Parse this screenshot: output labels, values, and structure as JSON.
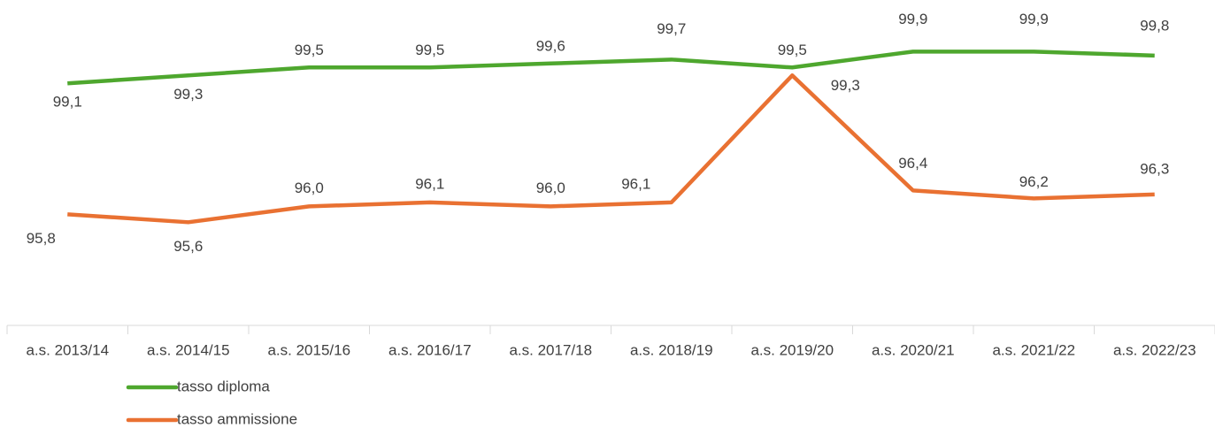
{
  "chart_data": {
    "type": "line",
    "categories": [
      "a.s. 2013/14",
      "a.s. 2014/15",
      "a.s. 2015/16",
      "a.s. 2016/17",
      "a.s. 2017/18",
      "a.s. 2018/19",
      "a.s. 2019/20",
      "a.s. 2020/21",
      "a.s. 2021/22",
      "a.s. 2022/23"
    ],
    "series": [
      {
        "name": "tasso diploma",
        "color": "#4ea72e",
        "values": [
          99.1,
          99.3,
          99.5,
          99.5,
          99.6,
          99.7,
          99.5,
          99.9,
          99.9,
          99.8
        ],
        "value_labels": [
          "99,1",
          "99,3",
          "99,5",
          "99,5",
          "99,6",
          "99,7",
          "99,5",
          "99,9",
          "99,9",
          "99,8"
        ]
      },
      {
        "name": "tasso ammissione",
        "color": "#e97132",
        "values": [
          95.8,
          95.6,
          96.0,
          96.1,
          96.0,
          96.1,
          99.3,
          96.4,
          96.2,
          96.3
        ],
        "value_labels": [
          "95,8",
          "95,6",
          "96,0",
          "96,1",
          "96,0",
          "96,1",
          "99,3",
          "96,4",
          "96,2",
          "96,3"
        ]
      }
    ],
    "ylim": [
      93,
      101.2
    ]
  }
}
